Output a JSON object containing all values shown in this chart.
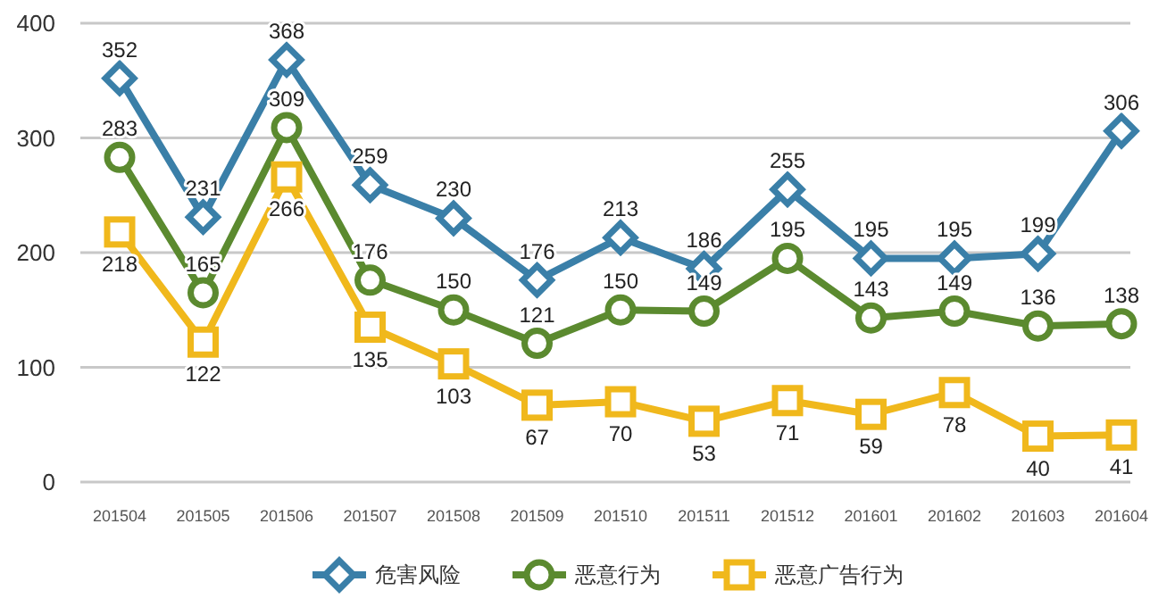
{
  "chart_data": {
    "type": "line",
    "categories": [
      "201504",
      "201505",
      "201506",
      "201507",
      "201508",
      "201509",
      "201510",
      "201511",
      "201512",
      "201601",
      "201602",
      "201603",
      "201604"
    ],
    "series": [
      {
        "name": "危害风险",
        "color": "#3a7fa8",
        "marker": "diamond",
        "values": [
          352,
          231,
          368,
          259,
          230,
          176,
          213,
          186,
          255,
          195,
          195,
          199,
          306
        ]
      },
      {
        "name": "恶意行为",
        "color": "#5b8a2f",
        "marker": "circle",
        "values": [
          283,
          165,
          309,
          176,
          150,
          121,
          150,
          149,
          195,
          143,
          149,
          136,
          138
        ]
      },
      {
        "name": "恶意广告行为",
        "color": "#f0b81c",
        "marker": "square",
        "values": [
          218,
          122,
          266,
          135,
          103,
          67,
          70,
          53,
          71,
          59,
          78,
          40,
          41
        ]
      }
    ],
    "ylim": [
      0,
      400
    ],
    "yticks": [
      0,
      100,
      200,
      300,
      400
    ],
    "grid": "y",
    "legend": "bottom",
    "data_labels": true,
    "line_style": "solid"
  }
}
